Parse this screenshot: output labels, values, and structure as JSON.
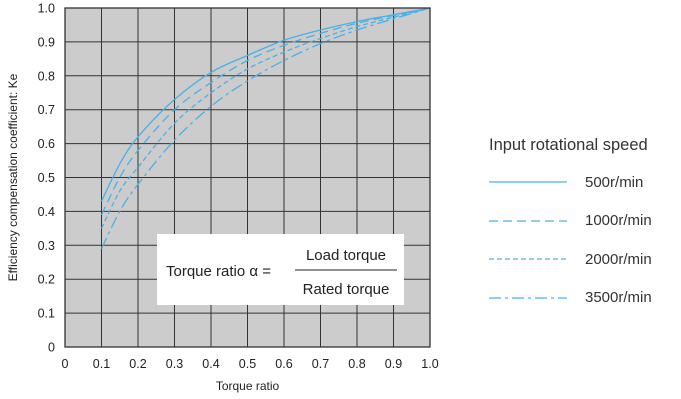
{
  "chart_data": {
    "type": "line",
    "xlabel": "Torque ratio",
    "ylabel": "Efficiency compensation coefficient: Ke",
    "xlim": [
      0,
      1.0
    ],
    "ylim": [
      0,
      1.0
    ],
    "xticks": [
      "0",
      "0.1",
      "0.2",
      "0.3",
      "0.4",
      "0.5",
      "0.6",
      "0.7",
      "0.8",
      "0.9",
      "1.0"
    ],
    "yticks": [
      "0",
      "0.1",
      "0.2",
      "0.3",
      "0.4",
      "0.5",
      "0.6",
      "0.7",
      "0.8",
      "0.9",
      "1.0"
    ],
    "grid": true,
    "background": "#cccccc",
    "line_color": "#4ab0e6",
    "legend": {
      "title": "Input rotational speed",
      "placement": "right"
    },
    "annotation": {
      "prefix": "Torque ratio α =",
      "numerator": "Load torque",
      "denominator": "Rated torque"
    },
    "series": [
      {
        "name": "500r/min",
        "style": "solid",
        "x": [
          0.1,
          0.15,
          0.2,
          0.3,
          0.4,
          0.5,
          0.6,
          0.7,
          0.8,
          0.9,
          1.0
        ],
        "y": [
          0.43,
          0.54,
          0.62,
          0.73,
          0.81,
          0.86,
          0.905,
          0.935,
          0.96,
          0.98,
          1.0
        ]
      },
      {
        "name": "1000r/min",
        "style": "dashed",
        "x": [
          0.1,
          0.15,
          0.2,
          0.3,
          0.4,
          0.5,
          0.6,
          0.7,
          0.8,
          0.9,
          1.0
        ],
        "y": [
          0.39,
          0.5,
          0.58,
          0.7,
          0.78,
          0.845,
          0.89,
          0.925,
          0.955,
          0.978,
          1.0
        ]
      },
      {
        "name": "2000r/min",
        "style": "dotted",
        "x": [
          0.1,
          0.15,
          0.2,
          0.3,
          0.4,
          0.5,
          0.6,
          0.7,
          0.8,
          0.9,
          1.0
        ],
        "y": [
          0.35,
          0.46,
          0.53,
          0.66,
          0.75,
          0.82,
          0.87,
          0.91,
          0.945,
          0.973,
          1.0
        ]
      },
      {
        "name": "3500r/min",
        "style": "dashdot",
        "x": [
          0.1,
          0.15,
          0.2,
          0.3,
          0.4,
          0.5,
          0.6,
          0.7,
          0.8,
          0.9,
          1.0
        ],
        "y": [
          0.29,
          0.4,
          0.48,
          0.61,
          0.71,
          0.785,
          0.845,
          0.895,
          0.935,
          0.968,
          1.0
        ]
      }
    ]
  }
}
